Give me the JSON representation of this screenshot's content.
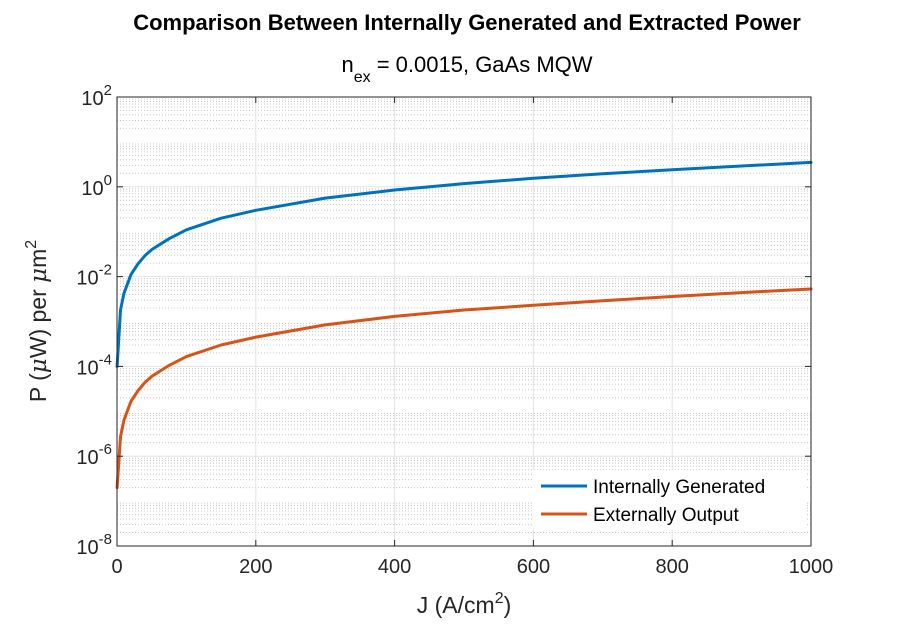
{
  "chart_data": {
    "type": "line",
    "title": "Comparison Between Internally Generated and Extracted Power",
    "subtitle": {
      "base": "n",
      "sub": "ex",
      "rest": " = 0.0015, GaAs MQW"
    },
    "xlabel": {
      "base": "J (A/cm",
      "sup": "2",
      "rest": ")"
    },
    "ylabel": {
      "base": "P (",
      "mu": "μ",
      "mid": "W) per ",
      "mu2": "μ",
      "m": "m",
      "sup": "2"
    },
    "xlim": [
      0,
      1000
    ],
    "ylim": [
      1e-08,
      100
    ],
    "yscale": "log",
    "grid": true,
    "minor_grid": true,
    "legend_position": "bottom-right",
    "xticks": [
      {
        "value": 0,
        "label": "0"
      },
      {
        "value": 200,
        "label": "200"
      },
      {
        "value": 400,
        "label": "400"
      },
      {
        "value": 600,
        "label": "600"
      },
      {
        "value": 800,
        "label": "800"
      },
      {
        "value": 1000,
        "label": "1000"
      }
    ],
    "yticks": [
      {
        "value": 1e-08,
        "base": "10",
        "exp": "-8"
      },
      {
        "value": 1e-06,
        "base": "10",
        "exp": "-6"
      },
      {
        "value": 0.0001,
        "base": "10",
        "exp": "-4"
      },
      {
        "value": 0.01,
        "base": "10",
        "exp": "-2"
      },
      {
        "value": 1,
        "base": "10",
        "exp": "0"
      },
      {
        "value": 100,
        "base": "10",
        "exp": "2"
      }
    ],
    "series": [
      {
        "name": "Internally Generated",
        "color": "#0072BD",
        "x": [
          0.1,
          5,
          10,
          20,
          30,
          40,
          50,
          75,
          100,
          150,
          200,
          300,
          400,
          500,
          600,
          700,
          800,
          900,
          1000
        ],
        "y": [
          0.0001,
          0.0018,
          0.0042,
          0.011,
          0.019,
          0.029,
          0.04,
          0.07,
          0.11,
          0.2,
          0.3,
          0.56,
          0.85,
          1.18,
          1.55,
          1.95,
          2.4,
          2.9,
          3.5
        ]
      },
      {
        "name": "Externally Output",
        "color": "#D95319",
        "x": [
          0.1,
          5,
          10,
          20,
          30,
          40,
          50,
          75,
          100,
          150,
          200,
          300,
          400,
          500,
          600,
          700,
          800,
          900,
          1000
        ],
        "y": [
          2e-07,
          2.7e-06,
          6.3e-06,
          1.65e-05,
          2.85e-05,
          4.35e-05,
          6e-05,
          0.000105,
          0.000165,
          0.0003,
          0.00045,
          0.00084,
          0.0013,
          0.0018,
          0.0023,
          0.0029,
          0.0036,
          0.0044,
          0.0053
        ]
      }
    ]
  }
}
